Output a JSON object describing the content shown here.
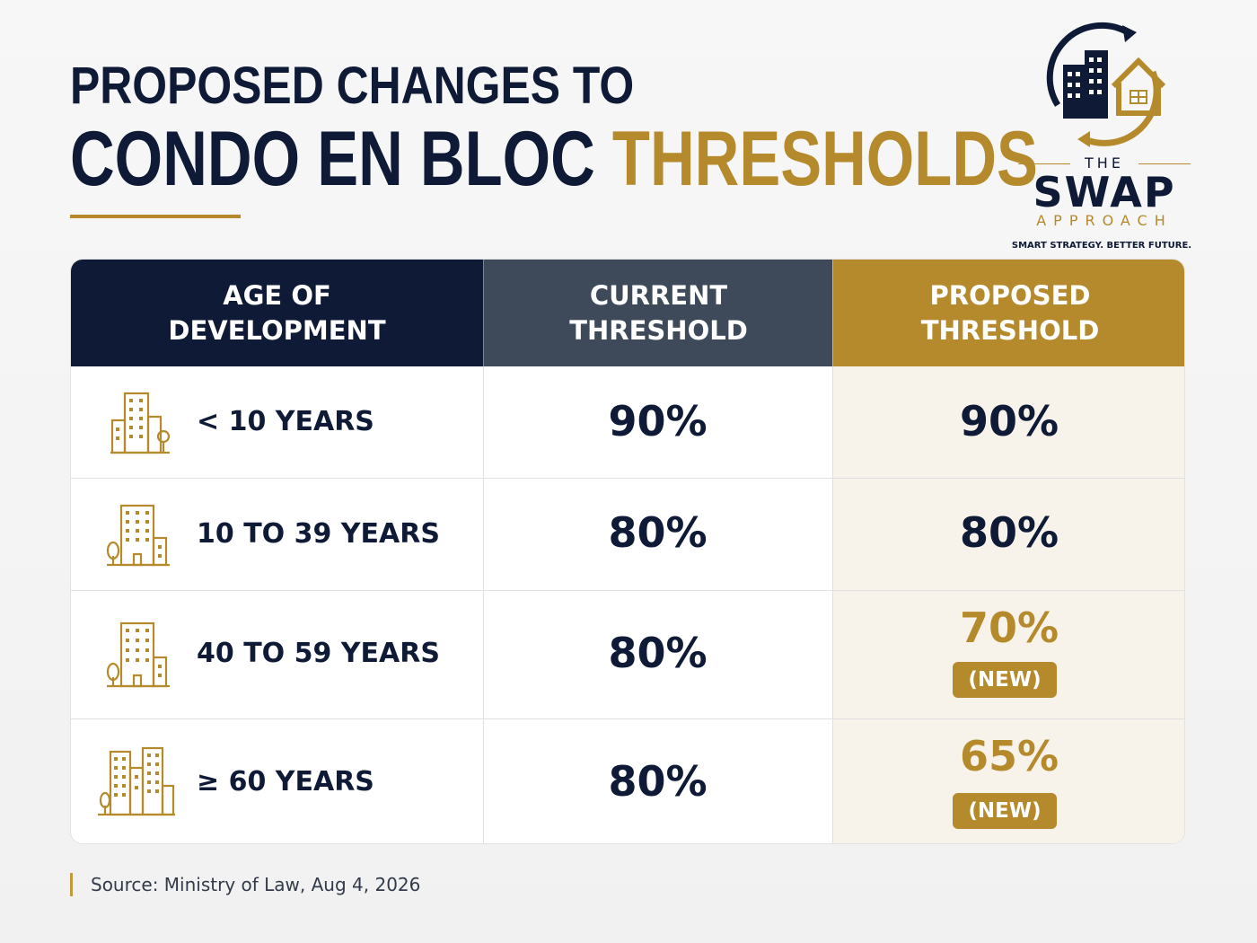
{
  "header": {
    "title_line1": "PROPOSED CHANGES TO",
    "title_line2_dark": "CONDO EN BLOC",
    "title_line2_gold": "THRESHOLDS"
  },
  "logo": {
    "the": "THE",
    "swap": "SWAP",
    "approach": "APPROACH",
    "tagline": "SMART STRATEGY. BETTER FUTURE."
  },
  "table": {
    "headers": [
      "AGE OF\nDEVELOPMENT",
      "CURRENT\nTHRESHOLD",
      "PROPOSED\nTHRESHOLD"
    ],
    "rows": [
      {
        "label": "< 10 YEARS",
        "current": "90%",
        "proposed": "90%",
        "badge": "",
        "icon": "building-with-tree-icon"
      },
      {
        "label": "10 TO 39 YEARS",
        "current": "80%",
        "proposed": "80%",
        "badge": "",
        "icon": "tall-building-icon"
      },
      {
        "label": "40 TO 59 YEARS",
        "current": "80%",
        "proposed": "70%",
        "badge": "(NEW)",
        "icon": "tall-building-icon"
      },
      {
        "label": "≥ 60 YEARS",
        "current": "80%",
        "proposed": "65%",
        "badge": "(NEW)",
        "icon": "city-buildings-icon"
      }
    ]
  },
  "colors": {
    "navy": "#0e1a36",
    "slate": "#3e4a5a",
    "gold": "#b58a2c",
    "proposed_column_bg": "#f8f3ea"
  },
  "source": "Source: Ministry of Law, Aug 4, 2026"
}
